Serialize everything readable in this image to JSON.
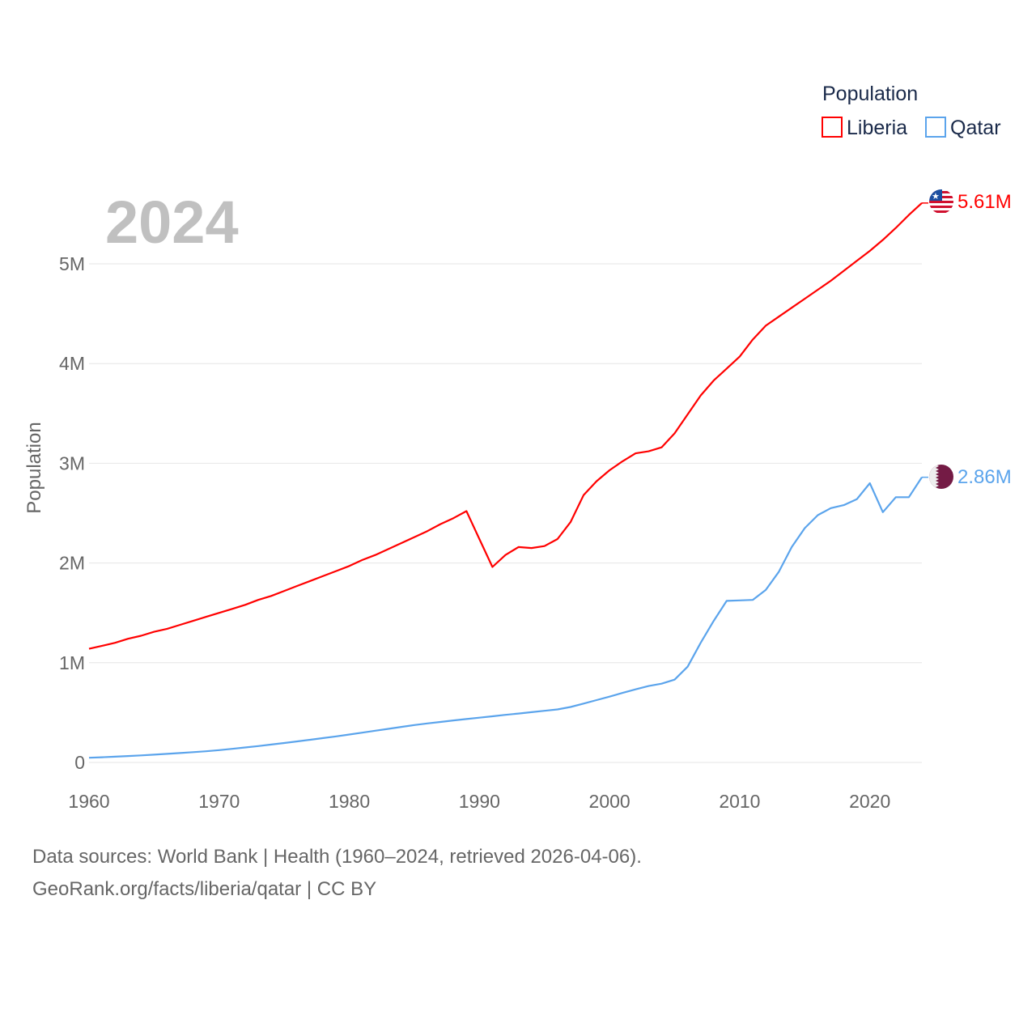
{
  "chart_data": {
    "type": "line",
    "year_label": "2024",
    "ylabel": "Population",
    "legend": {
      "title": "Population",
      "position": "top-right"
    },
    "xlim": [
      1960,
      2024
    ],
    "ylim": [
      0,
      5000000
    ],
    "x_ticks": [
      "1960",
      "1970",
      "1980",
      "1990",
      "2000",
      "2010",
      "2020"
    ],
    "x_tick_values": [
      1960,
      1970,
      1980,
      1990,
      2000,
      2010,
      2020
    ],
    "y_ticks": [
      "0",
      "1M",
      "2M",
      "3M",
      "4M",
      "5M"
    ],
    "y_tick_values": [
      0,
      1000000,
      2000000,
      3000000,
      4000000,
      5000000
    ],
    "x": [
      1960,
      1961,
      1962,
      1963,
      1964,
      1965,
      1966,
      1967,
      1968,
      1969,
      1970,
      1971,
      1972,
      1973,
      1974,
      1975,
      1976,
      1977,
      1978,
      1979,
      1980,
      1981,
      1982,
      1983,
      1984,
      1985,
      1986,
      1987,
      1988,
      1989,
      1990,
      1991,
      1992,
      1993,
      1994,
      1995,
      1996,
      1997,
      1998,
      1999,
      2000,
      2001,
      2002,
      2003,
      2004,
      2005,
      2006,
      2007,
      2008,
      2009,
      2010,
      2011,
      2012,
      2013,
      2014,
      2015,
      2016,
      2017,
      2018,
      2019,
      2020,
      2021,
      2022,
      2023,
      2024
    ],
    "series": [
      {
        "name": "Liberia",
        "color": "#ff0000",
        "end_label": "5.61M",
        "flag": "liberia-flag",
        "values_millions": [
          1.14,
          1.17,
          1.2,
          1.24,
          1.27,
          1.31,
          1.34,
          1.38,
          1.42,
          1.46,
          1.5,
          1.54,
          1.58,
          1.63,
          1.67,
          1.72,
          1.77,
          1.82,
          1.87,
          1.92,
          1.97,
          2.03,
          2.08,
          2.14,
          2.2,
          2.26,
          2.32,
          2.39,
          2.45,
          2.52,
          2.24,
          1.96,
          2.08,
          2.16,
          2.15,
          2.17,
          2.24,
          2.41,
          2.68,
          2.82,
          2.93,
          3.02,
          3.1,
          3.12,
          3.16,
          3.3,
          3.49,
          3.68,
          3.83,
          3.95,
          4.07,
          4.24,
          4.38,
          4.47,
          4.56,
          4.65,
          4.74,
          4.83,
          4.93,
          5.03,
          5.13,
          5.24,
          5.36,
          5.49,
          5.61
        ]
      },
      {
        "name": "Qatar",
        "color": "#5ba4ec",
        "end_label": "2.86M",
        "flag": "qatar-flag",
        "values_millions": [
          0.047,
          0.052,
          0.058,
          0.064,
          0.071,
          0.078,
          0.086,
          0.094,
          0.103,
          0.112,
          0.123,
          0.136,
          0.15,
          0.164,
          0.179,
          0.195,
          0.211,
          0.227,
          0.244,
          0.261,
          0.28,
          0.299,
          0.318,
          0.337,
          0.356,
          0.375,
          0.391,
          0.406,
          0.421,
          0.435,
          0.449,
          0.463,
          0.477,
          0.49,
          0.504,
          0.518,
          0.532,
          0.556,
          0.59,
          0.625,
          0.66,
          0.697,
          0.733,
          0.766,
          0.79,
          0.83,
          0.96,
          1.2,
          1.42,
          1.62,
          1.625,
          1.63,
          1.73,
          1.91,
          2.16,
          2.35,
          2.48,
          2.55,
          2.58,
          2.64,
          2.8,
          2.51,
          2.66,
          2.66,
          2.86
        ]
      }
    ]
  },
  "footer": {
    "line1": "Data sources: World Bank | Health (1960–2024, retrieved 2026-04-06).",
    "line2": "GeoRank.org/facts/liberia/qatar | CC BY"
  }
}
